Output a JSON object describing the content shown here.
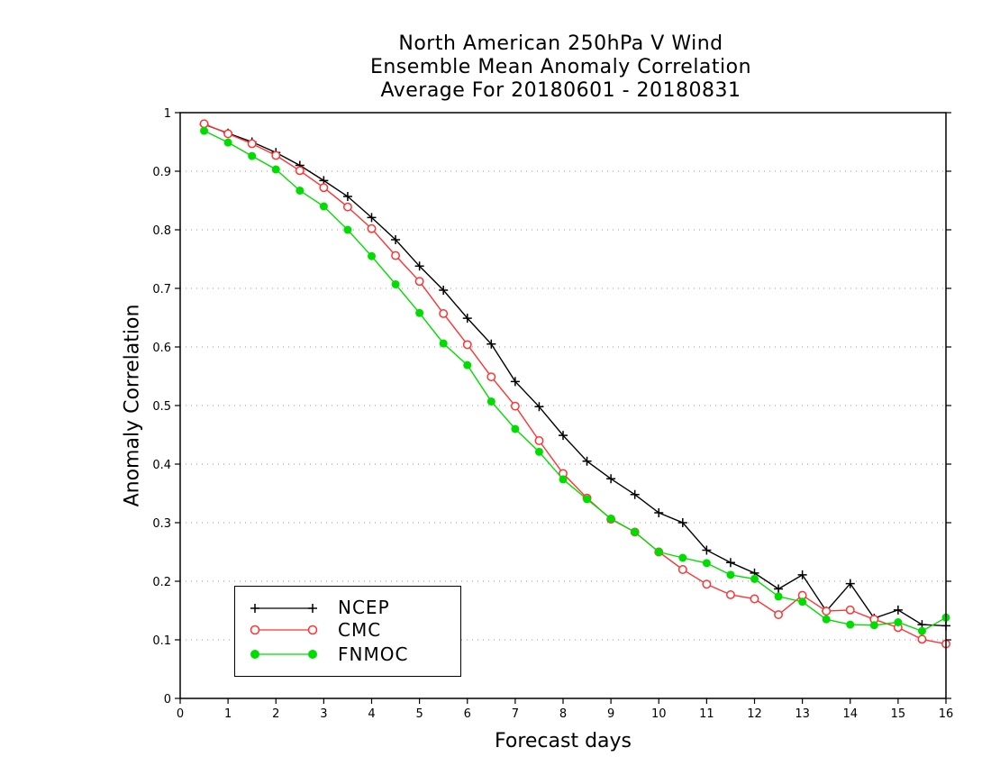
{
  "chart_data": {
    "type": "line",
    "title": [
      "North American 250hPa V Wind",
      "Ensemble Mean Anomaly Correlation",
      "Average For 20180601 - 20180831"
    ],
    "xlabel": "Forecast days",
    "ylabel": "Anomaly Correlation",
    "xlim": [
      0,
      16
    ],
    "ylim": [
      0,
      1
    ],
    "xticks": [
      "0",
      "1",
      "2",
      "3",
      "4",
      "5",
      "6",
      "7",
      "8",
      "9",
      "10",
      "11",
      "12",
      "13",
      "14",
      "15",
      "16"
    ],
    "yticks": [
      "0",
      "0.1",
      "0.2",
      "0.3",
      "0.4",
      "0.5",
      "0.6",
      "0.7",
      "0.8",
      "0.9",
      "1"
    ],
    "grid": "horizontal dotted",
    "legend_position": "bottom-left",
    "x": [
      0.5,
      1,
      1.5,
      2,
      2.5,
      3,
      3.5,
      4,
      4.5,
      5,
      5.5,
      6,
      6.5,
      7,
      7.5,
      8,
      8.5,
      9,
      9.5,
      10,
      10.5,
      11,
      11.5,
      12,
      12.5,
      13,
      13.5,
      14,
      14.5,
      15,
      15.5,
      16
    ],
    "series": [
      {
        "name": "NCEP",
        "color": "#000000",
        "marker": "plus",
        "values": [
          0.98,
          0.965,
          0.95,
          0.932,
          0.91,
          0.884,
          0.857,
          0.821,
          0.783,
          0.738,
          0.697,
          0.649,
          0.605,
          0.541,
          0.498,
          0.449,
          0.405,
          0.375,
          0.348,
          0.317,
          0.3,
          0.253,
          0.232,
          0.214,
          0.187,
          0.211,
          0.149,
          0.196,
          0.137,
          0.151,
          0.126,
          0.124
        ]
      },
      {
        "name": "CMC",
        "color": "#ff3333",
        "marker": "open-circle",
        "values": [
          0.981,
          0.964,
          0.947,
          0.927,
          0.901,
          0.872,
          0.839,
          0.802,
          0.756,
          0.712,
          0.657,
          0.604,
          0.549,
          0.499,
          0.44,
          0.384,
          0.342,
          0.306,
          0.284,
          0.25,
          0.22,
          0.195,
          0.177,
          0.17,
          0.143,
          0.176,
          0.149,
          0.151,
          0.135,
          0.121,
          0.101,
          0.093
        ]
      },
      {
        "name": "FNMOC",
        "color": "#00dd00",
        "marker": "filled-circle",
        "values": [
          0.969,
          0.949,
          0.926,
          0.903,
          0.867,
          0.84,
          0.8,
          0.755,
          0.707,
          0.658,
          0.606,
          0.569,
          0.507,
          0.46,
          0.421,
          0.374,
          0.34,
          0.307,
          0.284,
          0.25,
          0.24,
          0.231,
          0.211,
          0.204,
          0.174,
          0.165,
          0.135,
          0.126,
          0.125,
          0.13,
          0.115,
          0.138
        ]
      }
    ]
  }
}
